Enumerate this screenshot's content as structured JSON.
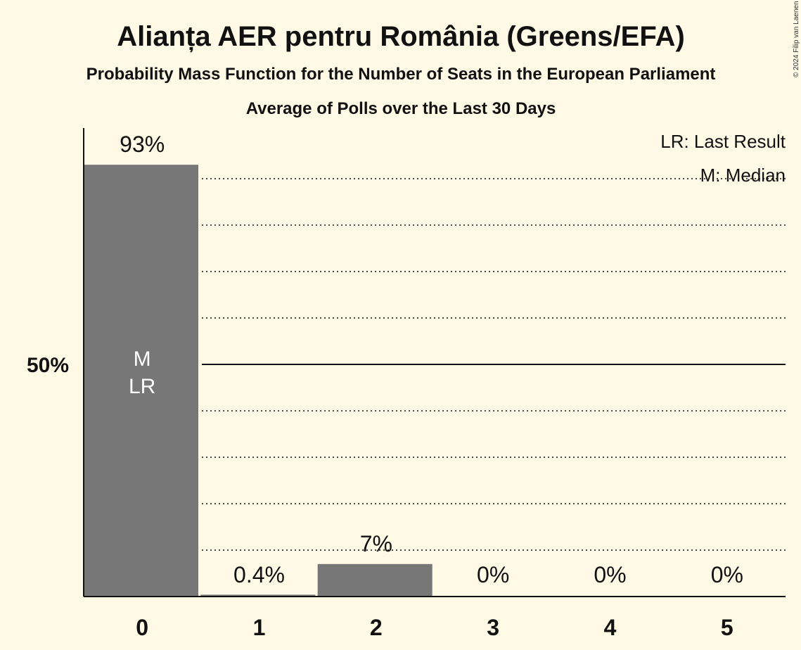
{
  "chart_data": {
    "type": "bar",
    "title": "Alianța AER pentru România (Greens/EFA)",
    "subtitle": "Probability Mass Function for the Number of Seats in the European Parliament",
    "subtitle2": "Average of Polls over the Last 30 Days",
    "categories": [
      "0",
      "1",
      "2",
      "3",
      "4",
      "5"
    ],
    "values": [
      93,
      0.4,
      7,
      0,
      0,
      0
    ],
    "value_labels": [
      "93%",
      "0.4%",
      "7%",
      "0%",
      "0%",
      "0%"
    ],
    "ylim": [
      0,
      100
    ],
    "yticks": [
      {
        "value": 50,
        "label": "50%"
      }
    ],
    "gridlines": [
      10,
      20,
      30,
      40,
      60,
      70,
      80,
      90
    ],
    "bar_color": "#777777",
    "median_label": "M",
    "last_result_label": "LR",
    "median_index": 0,
    "last_result_index": 0,
    "legend": [
      "LR: Last Result",
      "M: Median"
    ],
    "copyright": "© 2024 Filip van Laenen"
  }
}
